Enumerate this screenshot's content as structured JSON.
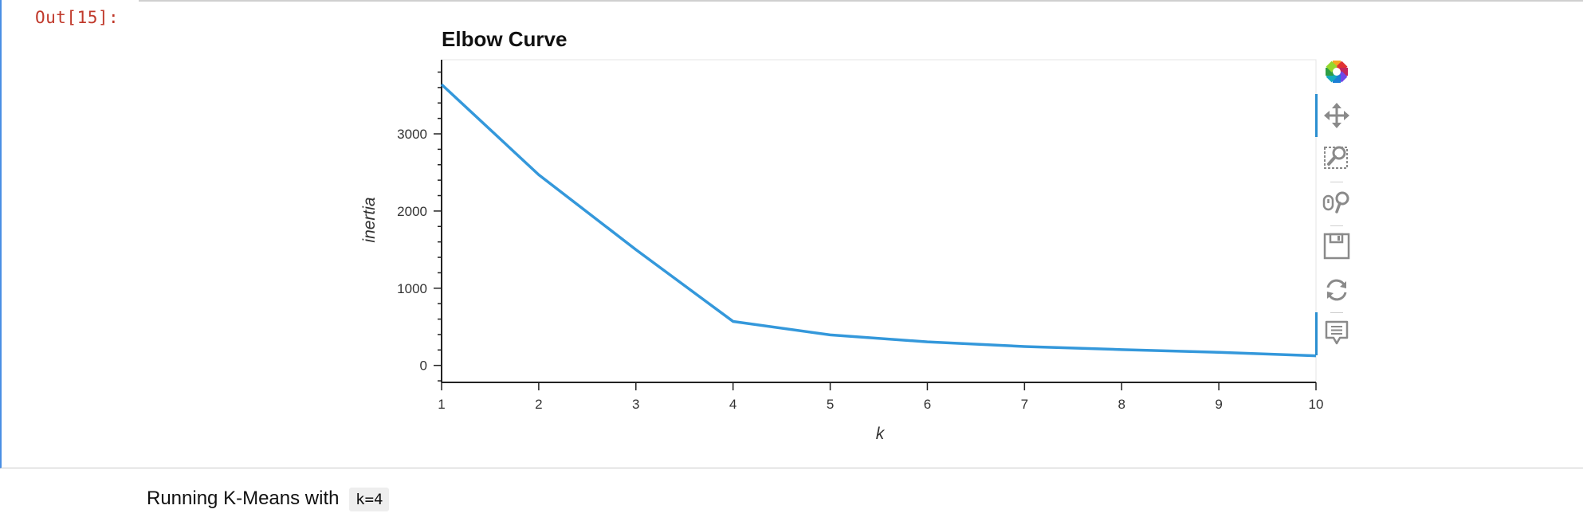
{
  "output_cell": {
    "prompt": "Out[15]:"
  },
  "chart_data": {
    "type": "line",
    "title": "Elbow Curve",
    "xlabel": "k",
    "ylabel": "inertia",
    "x": [
      1,
      2,
      3,
      4,
      5,
      6,
      7,
      8,
      9,
      10
    ],
    "series": [
      {
        "values": [
          3640,
          2470,
          1500,
          570,
          395,
          305,
          245,
          205,
          170,
          125
        ]
      }
    ],
    "xlim": [
      1,
      10
    ],
    "ylim": [
      -220,
      3960
    ],
    "x_ticks": [
      "1",
      "2",
      "3",
      "4",
      "5",
      "6",
      "7",
      "8",
      "9",
      "10"
    ],
    "y_ticks": [
      "0",
      "1000",
      "2000",
      "3000"
    ],
    "line_color": "#3498db",
    "grid": false
  },
  "toolbar": {
    "tools": [
      "bokeh-logo-icon",
      "pan-icon",
      "box-zoom-icon",
      "wheel-zoom-icon",
      "save-icon",
      "reset-icon",
      "hover-icon"
    ]
  },
  "markdown": {
    "text": "Running K-Means with",
    "code": "k=4"
  }
}
